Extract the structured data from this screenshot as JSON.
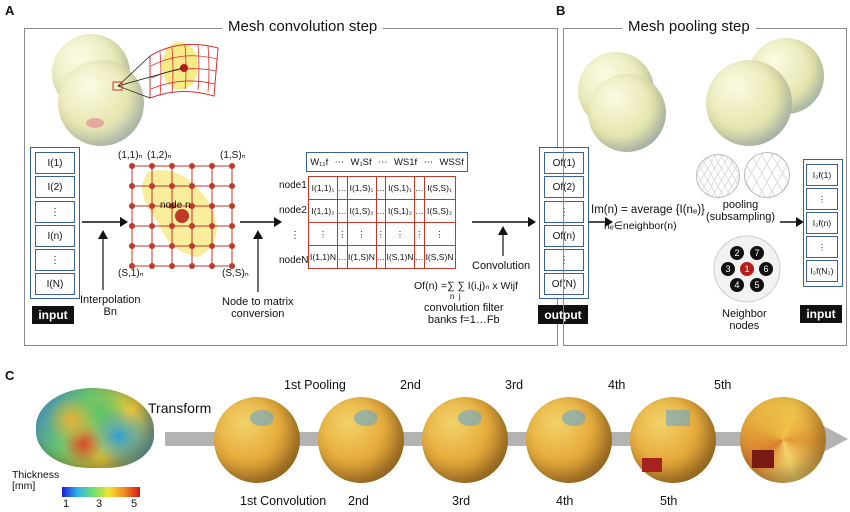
{
  "panel_a": {
    "letter": "A",
    "title": "Mesh convolution step",
    "input_cells": [
      "I(1)",
      "I(2)",
      "⋮",
      "I(n)",
      "⋮",
      "I(N)"
    ],
    "input_badge": "input",
    "grid_labels": {
      "top_left": "(1,1)ₙ",
      "top_second": "(1,2)ₙ",
      "top_right": "(1,S)ₙ",
      "bottom_left": "(S,1)ₙ",
      "bottom_right": "(S,S)ₙ",
      "center": "node n"
    },
    "interpolation_label": "Interpolation\nBn",
    "node_to_matrix_label": "Node to matrix\nconversion",
    "weights_row": [
      "W₁₁f",
      "⋯",
      "W₁Sf",
      "⋯",
      "WS1f",
      "⋯",
      "WSSf"
    ],
    "matrix_row_labels": [
      "node1",
      "node2",
      "⋮",
      "nodeN"
    ],
    "matrix_rows": [
      [
        "I(1,1)₁",
        "…",
        "I(1,S)₁",
        "…",
        "I(S,1)₁",
        "…",
        "I(S,S)₁"
      ],
      [
        "I(1,1)₂",
        "…",
        "I(1,S)₂",
        "…",
        "I(S,1)₂",
        "…",
        "I(S,S)₂"
      ],
      [
        "⋮",
        "⋮",
        "⋮",
        "⋮",
        "⋮",
        "⋮",
        "⋮"
      ],
      [
        "I(1,1)N",
        "…",
        "I(1,S)N",
        "…",
        "I(S,1)N",
        "…",
        "I(S,S)N"
      ]
    ],
    "convolution_label": "Convolution",
    "formula": "Of(n) =∑ ∑ I(i,j)ₙ x Wijf",
    "formula_sub": "n  j",
    "filter_label": "convolution filter\nbanks f=1…Fb",
    "output_cells": [
      "Of(1)",
      "Of(2)",
      "⋮",
      "Of(n)",
      "⋮",
      "Of(N)"
    ],
    "output_badge": "output"
  },
  "panel_b": {
    "letter": "B",
    "title": "Mesh pooling step",
    "pool_formula": "Im(n) = average {I(nₑ)}",
    "pool_formula_sub": "nₑ∈neighbor(n)",
    "pooling_label": "pooling\n(subsampling)",
    "neighbor_label": "Neighbor\nnodes",
    "neighbor_numbers": [
      "2",
      "7",
      "3",
      "1",
      "6",
      "4",
      "5"
    ],
    "output_cells": [
      "I₂f(1)",
      "⋮",
      "I₂f(n)",
      "⋮",
      "I₂f(N₂)"
    ],
    "input_badge": "input"
  },
  "panel_c": {
    "letter": "C",
    "transform_label": "Transform",
    "pooling_labels": [
      "1st Pooling",
      "2nd",
      "3rd",
      "4th",
      "5th"
    ],
    "convolution_labels": [
      "1st Convolution",
      "2nd",
      "3rd",
      "4th",
      "5th"
    ],
    "colorbar": {
      "title": "Thickness\n[mm]",
      "ticks": [
        "1",
        "3",
        "5"
      ],
      "colors": [
        "#1b1bd6",
        "#2fb6e8",
        "#6fe06a",
        "#f2e431",
        "#f08a24",
        "#d6141b"
      ]
    }
  }
}
